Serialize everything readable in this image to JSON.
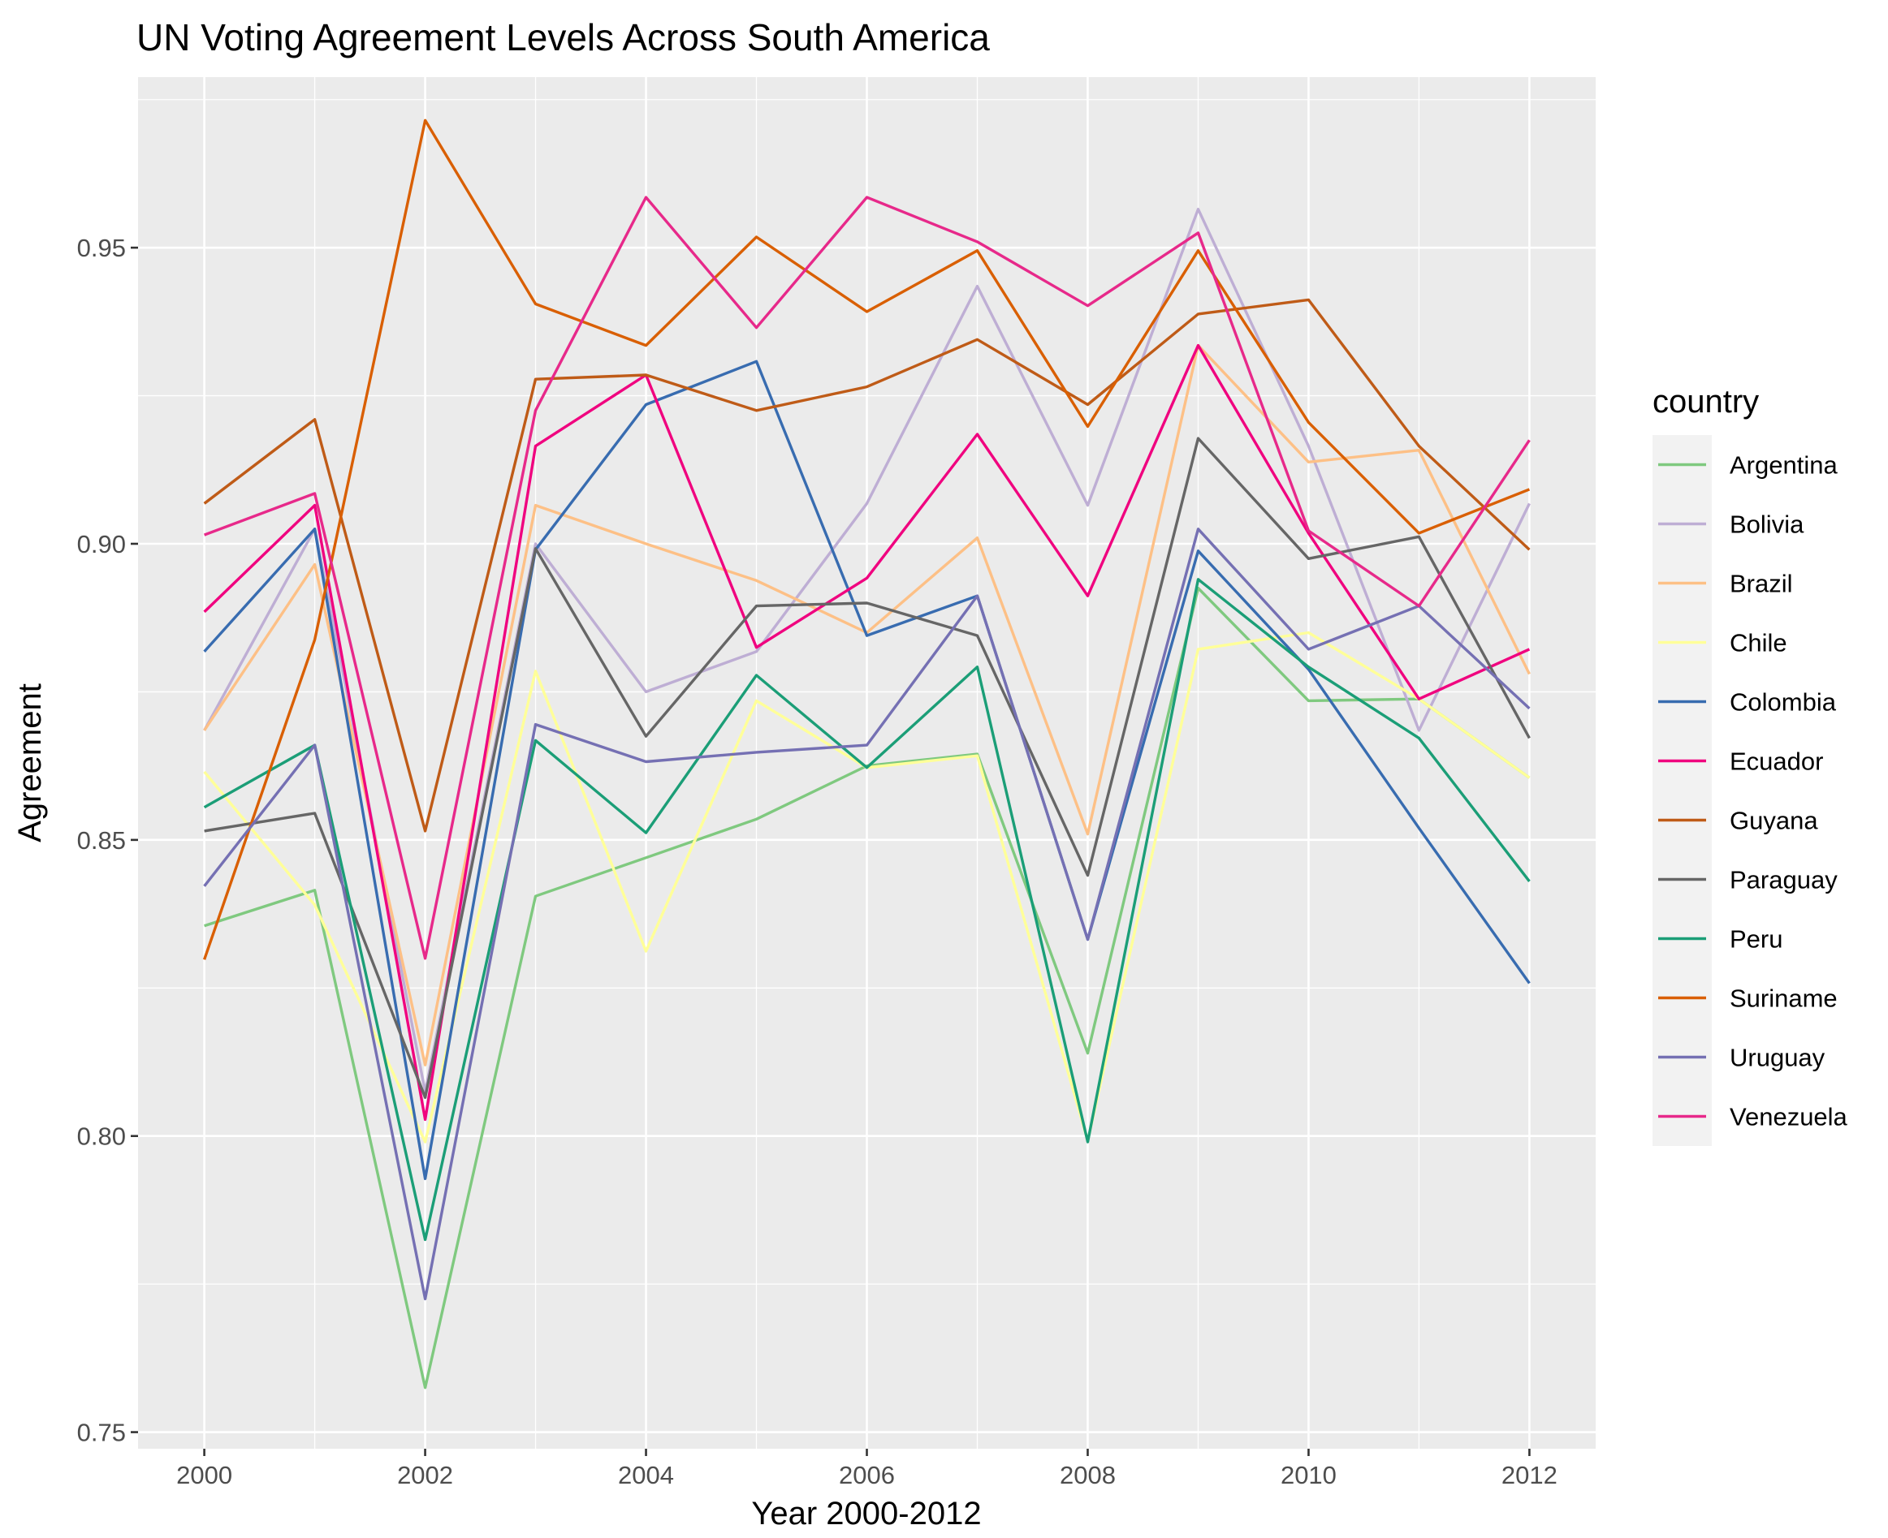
{
  "chart_data": {
    "type": "line",
    "title": "UN Voting Agreement Levels Across South America",
    "xlabel": "Year 2000-2012",
    "ylabel": "Agreement",
    "x": [
      2000,
      2001,
      2002,
      2003,
      2004,
      2005,
      2006,
      2007,
      2008,
      2009,
      2010,
      2011,
      2012
    ],
    "xlim": [
      1999.4,
      2012.6
    ],
    "ylim": [
      0.7472,
      0.9788
    ],
    "x_ticks": [
      "2000",
      "2002",
      "2004",
      "2006",
      "2008",
      "2010",
      "2012"
    ],
    "x_tick_values": [
      2000,
      2002,
      2004,
      2006,
      2008,
      2010,
      2012
    ],
    "y_ticks": [
      "0.75",
      "0.80",
      "0.85",
      "0.90",
      "0.95"
    ],
    "y_tick_values": [
      0.75,
      0.8,
      0.85,
      0.9,
      0.95
    ],
    "grid": true,
    "legend": {
      "title": "country",
      "position": "right"
    },
    "series": [
      {
        "name": "Argentina",
        "color": "#7FC97F",
        "values": [
          0.8355,
          0.8415,
          0.7575,
          0.8405,
          0.847,
          0.8535,
          0.8625,
          0.8645,
          0.814,
          0.8925,
          0.8735,
          0.8738,
          0.8605
        ]
      },
      {
        "name": "Bolivia",
        "color": "#BEAED4",
        "values": [
          0.8685,
          0.9025,
          0.8075,
          0.9,
          0.875,
          0.8818,
          0.9068,
          0.9435,
          0.9065,
          0.9565,
          0.9165,
          0.8685,
          0.9068
        ]
      },
      {
        "name": "Brazil",
        "color": "#FDC086",
        "values": [
          0.8685,
          0.8965,
          0.812,
          0.9065,
          0.9,
          0.8938,
          0.885,
          0.901,
          0.851,
          0.9335,
          0.9138,
          0.9158,
          0.878
        ]
      },
      {
        "name": "Chile",
        "color": "#FFFF99",
        "values": [
          0.8615,
          0.839,
          0.799,
          0.8785,
          0.8312,
          0.8735,
          0.8622,
          0.8642,
          0.7992,
          0.8822,
          0.885,
          0.8738,
          0.8605
        ]
      },
      {
        "name": "Colombia",
        "color": "#386CB0",
        "values": [
          0.8818,
          0.9025,
          0.7928,
          0.899,
          0.9235,
          0.9308,
          0.8845,
          0.8912,
          0.8332,
          0.8988,
          0.8788,
          0.852,
          0.8258
        ]
      },
      {
        "name": "Ecuador",
        "color": "#F0027F",
        "values": [
          0.8885,
          0.9065,
          0.8028,
          0.9165,
          0.9285,
          0.8825,
          0.8942,
          0.9185,
          0.8912,
          0.9335,
          0.9018,
          0.8738,
          0.8822
        ]
      },
      {
        "name": "Guyana",
        "color": "#BF5B17",
        "values": [
          0.9068,
          0.921,
          0.8515,
          0.9278,
          0.9285,
          0.9225,
          0.9265,
          0.9345,
          0.9235,
          0.9388,
          0.9412,
          0.9165,
          0.899
        ]
      },
      {
        "name": "Paraguay",
        "color": "#666666",
        "values": [
          0.8515,
          0.8545,
          0.8065,
          0.8992,
          0.8675,
          0.8895,
          0.89,
          0.8845,
          0.844,
          0.9178,
          0.8975,
          0.9012,
          0.8672
        ]
      },
      {
        "name": "Peru",
        "color": "#1B9E77",
        "values": [
          0.8555,
          0.866,
          0.7825,
          0.8668,
          0.8512,
          0.8778,
          0.8622,
          0.8792,
          0.799,
          0.894,
          0.8792,
          0.8672,
          0.843
        ]
      },
      {
        "name": "Suriname",
        "color": "#D95F02",
        "values": [
          0.8298,
          0.8838,
          0.9715,
          0.9405,
          0.9335,
          0.9518,
          0.9392,
          0.9495,
          0.9198,
          0.9495,
          0.9205,
          0.9018,
          0.9092
        ]
      },
      {
        "name": "Uruguay",
        "color": "#7570B3",
        "values": [
          0.8422,
          0.866,
          0.7725,
          0.8695,
          0.8632,
          0.8648,
          0.866,
          0.8912,
          0.8332,
          0.9025,
          0.8822,
          0.8895,
          0.8722
        ]
      },
      {
        "name": "Venezuela",
        "color": "#E7298A",
        "values": [
          0.9015,
          0.9085,
          0.83,
          0.9225,
          0.9585,
          0.9365,
          0.9585,
          0.951,
          0.9402,
          0.9525,
          0.9022,
          0.8895,
          0.9175
        ]
      }
    ]
  }
}
